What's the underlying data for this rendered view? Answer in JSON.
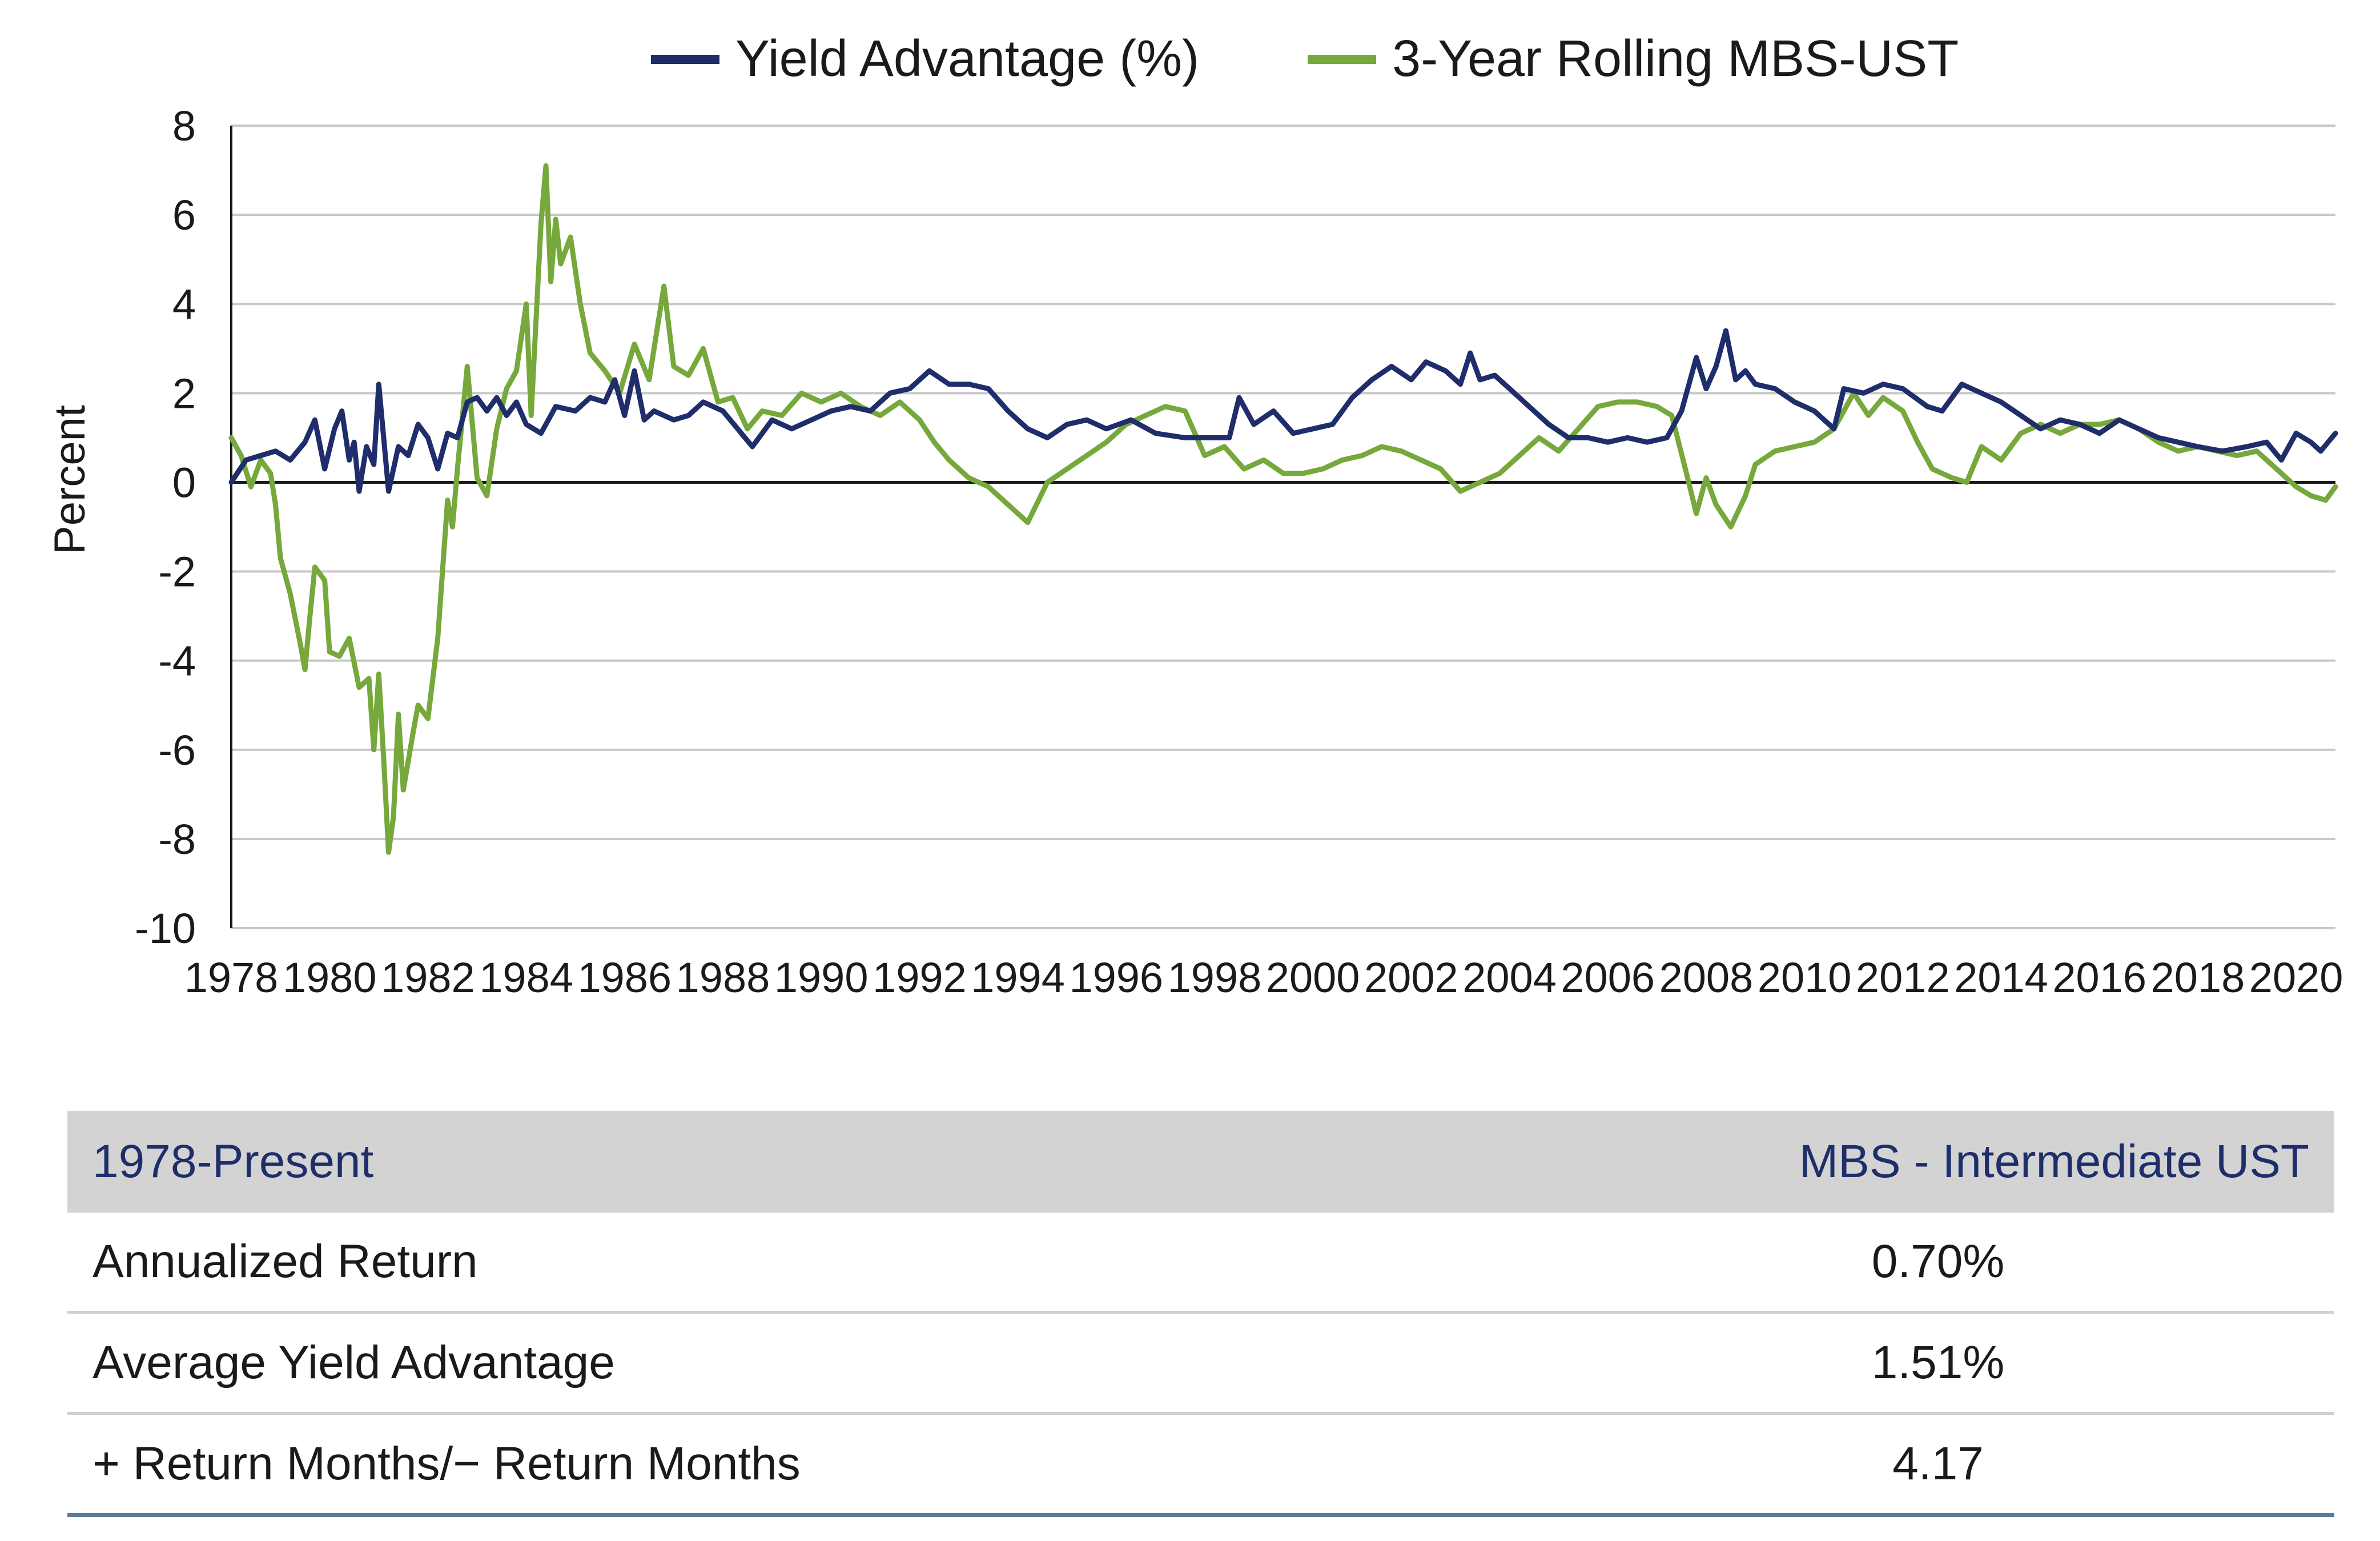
{
  "chart_data": {
    "type": "line",
    "ylabel": "Percent",
    "xlabel": "",
    "xlim": [
      1978,
      2020.8
    ],
    "ylim": [
      -10,
      8
    ],
    "yticks": [
      8,
      6,
      4,
      2,
      0,
      -2,
      -4,
      -6,
      -8,
      -10
    ],
    "xticks": [
      1978,
      1980,
      1982,
      1984,
      1986,
      1988,
      1990,
      1992,
      1994,
      1996,
      1998,
      2000,
      2002,
      2004,
      2006,
      2008,
      2010,
      2012,
      2014,
      2016,
      2018,
      2020
    ],
    "grid": "horizontal",
    "legend_position": "top",
    "series": [
      {
        "name": "Yield Advantage (%)",
        "color": "#1f2d6b",
        "points": [
          [
            1978.0,
            0.0
          ],
          [
            1978.3,
            0.5
          ],
          [
            1978.6,
            0.6
          ],
          [
            1978.9,
            0.7
          ],
          [
            1979.2,
            0.5
          ],
          [
            1979.5,
            0.9
          ],
          [
            1979.7,
            1.4
          ],
          [
            1979.9,
            0.3
          ],
          [
            1980.1,
            1.2
          ],
          [
            1980.25,
            1.6
          ],
          [
            1980.4,
            0.5
          ],
          [
            1980.5,
            0.9
          ],
          [
            1980.6,
            -0.2
          ],
          [
            1980.75,
            0.8
          ],
          [
            1980.9,
            0.4
          ],
          [
            1981.0,
            2.2
          ],
          [
            1981.2,
            -0.2
          ],
          [
            1981.4,
            0.8
          ],
          [
            1981.6,
            0.6
          ],
          [
            1981.8,
            1.3
          ],
          [
            1982.0,
            1.0
          ],
          [
            1982.2,
            0.3
          ],
          [
            1982.4,
            1.1
          ],
          [
            1982.6,
            1.0
          ],
          [
            1982.8,
            1.8
          ],
          [
            1983.0,
            1.9
          ],
          [
            1983.2,
            1.6
          ],
          [
            1983.4,
            1.9
          ],
          [
            1983.6,
            1.5
          ],
          [
            1983.8,
            1.8
          ],
          [
            1984.0,
            1.3
          ],
          [
            1984.3,
            1.1
          ],
          [
            1984.6,
            1.7
          ],
          [
            1985.0,
            1.6
          ],
          [
            1985.3,
            1.9
          ],
          [
            1985.6,
            1.8
          ],
          [
            1985.8,
            2.3
          ],
          [
            1986.0,
            1.5
          ],
          [
            1986.2,
            2.5
          ],
          [
            1986.4,
            1.4
          ],
          [
            1986.6,
            1.6
          ],
          [
            1987.0,
            1.4
          ],
          [
            1987.3,
            1.5
          ],
          [
            1987.6,
            1.8
          ],
          [
            1988.0,
            1.6
          ],
          [
            1988.3,
            1.2
          ],
          [
            1988.6,
            0.8
          ],
          [
            1989.0,
            1.4
          ],
          [
            1989.4,
            1.2
          ],
          [
            1989.8,
            1.4
          ],
          [
            1990.2,
            1.6
          ],
          [
            1990.6,
            1.7
          ],
          [
            1991.0,
            1.6
          ],
          [
            1991.4,
            2.0
          ],
          [
            1991.8,
            2.1
          ],
          [
            1992.2,
            2.5
          ],
          [
            1992.6,
            2.2
          ],
          [
            1993.0,
            2.2
          ],
          [
            1993.4,
            2.1
          ],
          [
            1993.8,
            1.6
          ],
          [
            1994.2,
            1.2
          ],
          [
            1994.6,
            1.0
          ],
          [
            1995.0,
            1.3
          ],
          [
            1995.4,
            1.4
          ],
          [
            1995.8,
            1.2
          ],
          [
            1996.3,
            1.4
          ],
          [
            1996.8,
            1.1
          ],
          [
            1997.4,
            1.0
          ],
          [
            1998.0,
            1.0
          ],
          [
            1998.3,
            1.0
          ],
          [
            1998.5,
            1.9
          ],
          [
            1998.8,
            1.3
          ],
          [
            1999.2,
            1.6
          ],
          [
            1999.6,
            1.1
          ],
          [
            2000.0,
            1.2
          ],
          [
            2000.4,
            1.3
          ],
          [
            2000.8,
            1.9
          ],
          [
            2001.2,
            2.3
          ],
          [
            2001.6,
            2.6
          ],
          [
            2002.0,
            2.3
          ],
          [
            2002.3,
            2.7
          ],
          [
            2002.7,
            2.5
          ],
          [
            2003.0,
            2.2
          ],
          [
            2003.2,
            2.9
          ],
          [
            2003.4,
            2.3
          ],
          [
            2003.7,
            2.4
          ],
          [
            2004.0,
            2.1
          ],
          [
            2004.4,
            1.7
          ],
          [
            2004.8,
            1.3
          ],
          [
            2005.2,
            1.0
          ],
          [
            2005.6,
            1.0
          ],
          [
            2006.0,
            0.9
          ],
          [
            2006.4,
            1.0
          ],
          [
            2006.8,
            0.9
          ],
          [
            2007.2,
            1.0
          ],
          [
            2007.5,
            1.6
          ],
          [
            2007.8,
            2.8
          ],
          [
            2008.0,
            2.1
          ],
          [
            2008.2,
            2.6
          ],
          [
            2008.4,
            3.4
          ],
          [
            2008.6,
            2.3
          ],
          [
            2008.8,
            2.5
          ],
          [
            2009.0,
            2.2
          ],
          [
            2009.4,
            2.1
          ],
          [
            2009.8,
            1.8
          ],
          [
            2010.2,
            1.6
          ],
          [
            2010.6,
            1.2
          ],
          [
            2010.8,
            2.1
          ],
          [
            2011.2,
            2.0
          ],
          [
            2011.6,
            2.2
          ],
          [
            2012.0,
            2.1
          ],
          [
            2012.5,
            1.7
          ],
          [
            2012.8,
            1.6
          ],
          [
            2013.2,
            2.2
          ],
          [
            2013.6,
            2.0
          ],
          [
            2014.0,
            1.8
          ],
          [
            2014.4,
            1.5
          ],
          [
            2014.8,
            1.2
          ],
          [
            2015.2,
            1.4
          ],
          [
            2015.6,
            1.3
          ],
          [
            2016.0,
            1.1
          ],
          [
            2016.4,
            1.4
          ],
          [
            2016.8,
            1.2
          ],
          [
            2017.2,
            1.0
          ],
          [
            2017.6,
            0.9
          ],
          [
            2018.0,
            0.8
          ],
          [
            2018.5,
            0.7
          ],
          [
            2019.0,
            0.8
          ],
          [
            2019.4,
            0.9
          ],
          [
            2019.7,
            0.5
          ],
          [
            2020.0,
            1.1
          ],
          [
            2020.3,
            0.9
          ],
          [
            2020.5,
            0.7
          ],
          [
            2020.8,
            1.1
          ]
        ]
      },
      {
        "name": "3-Year Rolling MBS-UST",
        "color": "#76a83c",
        "points": [
          [
            1978.0,
            1.0
          ],
          [
            1978.2,
            0.6
          ],
          [
            1978.4,
            -0.1
          ],
          [
            1978.6,
            0.5
          ],
          [
            1978.8,
            0.2
          ],
          [
            1978.9,
            -0.5
          ],
          [
            1979.0,
            -1.7
          ],
          [
            1979.2,
            -2.5
          ],
          [
            1979.4,
            -3.6
          ],
          [
            1979.5,
            -4.2
          ],
          [
            1979.6,
            -3.0
          ],
          [
            1979.7,
            -1.9
          ],
          [
            1979.9,
            -2.2
          ],
          [
            1980.0,
            -3.8
          ],
          [
            1980.2,
            -3.9
          ],
          [
            1980.4,
            -3.5
          ],
          [
            1980.6,
            -4.6
          ],
          [
            1980.8,
            -4.4
          ],
          [
            1980.9,
            -6.0
          ],
          [
            1981.0,
            -4.3
          ],
          [
            1981.1,
            -6.2
          ],
          [
            1981.2,
            -8.3
          ],
          [
            1981.3,
            -7.5
          ],
          [
            1981.4,
            -5.2
          ],
          [
            1981.5,
            -6.9
          ],
          [
            1981.7,
            -5.6
          ],
          [
            1981.8,
            -5.0
          ],
          [
            1982.0,
            -5.3
          ],
          [
            1982.2,
            -3.5
          ],
          [
            1982.4,
            -0.4
          ],
          [
            1982.5,
            -1.0
          ],
          [
            1982.6,
            0.3
          ],
          [
            1982.8,
            2.6
          ],
          [
            1983.0,
            0.1
          ],
          [
            1983.2,
            -0.3
          ],
          [
            1983.4,
            1.2
          ],
          [
            1983.6,
            2.1
          ],
          [
            1983.8,
            2.5
          ],
          [
            1984.0,
            4.0
          ],
          [
            1984.1,
            1.5
          ],
          [
            1984.3,
            5.8
          ],
          [
            1984.4,
            7.1
          ],
          [
            1984.5,
            4.5
          ],
          [
            1984.6,
            5.9
          ],
          [
            1984.7,
            4.9
          ],
          [
            1984.9,
            5.5
          ],
          [
            1985.1,
            4.0
          ],
          [
            1985.3,
            2.9
          ],
          [
            1985.6,
            2.5
          ],
          [
            1985.9,
            2.0
          ],
          [
            1986.2,
            3.1
          ],
          [
            1986.5,
            2.3
          ],
          [
            1986.8,
            4.4
          ],
          [
            1987.0,
            2.6
          ],
          [
            1987.3,
            2.4
          ],
          [
            1987.6,
            3.0
          ],
          [
            1987.9,
            1.8
          ],
          [
            1988.2,
            1.9
          ],
          [
            1988.5,
            1.2
          ],
          [
            1988.8,
            1.6
          ],
          [
            1989.2,
            1.5
          ],
          [
            1989.6,
            2.0
          ],
          [
            1990.0,
            1.8
          ],
          [
            1990.4,
            2.0
          ],
          [
            1990.8,
            1.7
          ],
          [
            1991.2,
            1.5
          ],
          [
            1991.6,
            1.8
          ],
          [
            1992.0,
            1.4
          ],
          [
            1992.3,
            0.9
          ],
          [
            1992.6,
            0.5
          ],
          [
            1993.0,
            0.1
          ],
          [
            1993.4,
            -0.1
          ],
          [
            1993.8,
            -0.5
          ],
          [
            1994.2,
            -0.9
          ],
          [
            1994.6,
            0.0
          ],
          [
            1995.0,
            0.3
          ],
          [
            1995.4,
            0.6
          ],
          [
            1995.8,
            0.9
          ],
          [
            1996.2,
            1.3
          ],
          [
            1996.6,
            1.5
          ],
          [
            1997.0,
            1.7
          ],
          [
            1997.4,
            1.6
          ],
          [
            1997.8,
            0.6
          ],
          [
            1998.2,
            0.8
          ],
          [
            1998.6,
            0.3
          ],
          [
            1999.0,
            0.5
          ],
          [
            1999.4,
            0.2
          ],
          [
            1999.8,
            0.2
          ],
          [
            2000.2,
            0.3
          ],
          [
            2000.6,
            0.5
          ],
          [
            2001.0,
            0.6
          ],
          [
            2001.4,
            0.8
          ],
          [
            2001.8,
            0.7
          ],
          [
            2002.2,
            0.5
          ],
          [
            2002.6,
            0.3
          ],
          [
            2003.0,
            -0.2
          ],
          [
            2003.4,
            0.0
          ],
          [
            2003.8,
            0.2
          ],
          [
            2004.2,
            0.6
          ],
          [
            2004.6,
            1.0
          ],
          [
            2005.0,
            0.7
          ],
          [
            2005.4,
            1.2
          ],
          [
            2005.8,
            1.7
          ],
          [
            2006.2,
            1.8
          ],
          [
            2006.6,
            1.8
          ],
          [
            2007.0,
            1.7
          ],
          [
            2007.3,
            1.5
          ],
          [
            2007.6,
            0.2
          ],
          [
            2007.8,
            -0.7
          ],
          [
            2008.0,
            0.1
          ],
          [
            2008.2,
            -0.5
          ],
          [
            2008.5,
            -1.0
          ],
          [
            2008.8,
            -0.3
          ],
          [
            2009.0,
            0.4
          ],
          [
            2009.4,
            0.7
          ],
          [
            2009.8,
            0.8
          ],
          [
            2010.2,
            0.9
          ],
          [
            2010.6,
            1.2
          ],
          [
            2011.0,
            2.0
          ],
          [
            2011.3,
            1.5
          ],
          [
            2011.6,
            1.9
          ],
          [
            2012.0,
            1.6
          ],
          [
            2012.3,
            0.9
          ],
          [
            2012.6,
            0.3
          ],
          [
            2013.0,
            0.1
          ],
          [
            2013.3,
            0.0
          ],
          [
            2013.6,
            0.8
          ],
          [
            2014.0,
            0.5
          ],
          [
            2014.4,
            1.1
          ],
          [
            2014.8,
            1.3
          ],
          [
            2015.2,
            1.1
          ],
          [
            2015.6,
            1.3
          ],
          [
            2016.0,
            1.3
          ],
          [
            2016.4,
            1.4
          ],
          [
            2016.8,
            1.2
          ],
          [
            2017.2,
            0.9
          ],
          [
            2017.6,
            0.7
          ],
          [
            2018.0,
            0.8
          ],
          [
            2018.4,
            0.7
          ],
          [
            2018.8,
            0.6
          ],
          [
            2019.2,
            0.7
          ],
          [
            2019.6,
            0.3
          ],
          [
            2020.0,
            -0.1
          ],
          [
            2020.3,
            -0.3
          ],
          [
            2020.6,
            -0.4
          ],
          [
            2020.8,
            -0.1
          ]
        ]
      }
    ]
  },
  "table": {
    "header": {
      "label": "1978-Present",
      "value": "MBS - Intermediate UST"
    },
    "rows": [
      {
        "label": "Annualized Return",
        "value": "0.70%"
      },
      {
        "label": "Average Yield Advantage",
        "value": "1.51%"
      },
      {
        "label": "+ Return Months/− Return Months",
        "value": "4.17"
      }
    ]
  }
}
